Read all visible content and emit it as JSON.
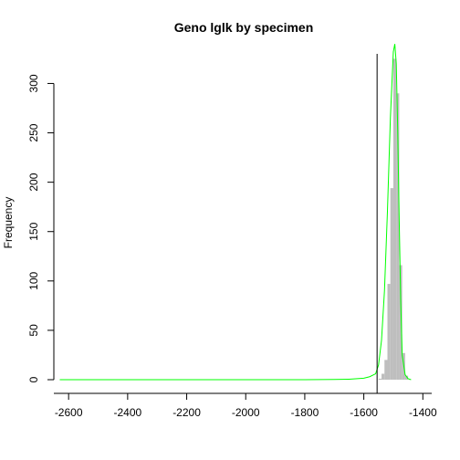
{
  "chart_data": {
    "type": "histogram",
    "title": "Geno lglk by specimen",
    "xlabel": "",
    "ylabel": "Frequency",
    "xlim": [
      -2650,
      -1370
    ],
    "ylim": [
      0,
      330
    ],
    "x_ticks": [
      -2600,
      -2400,
      -2200,
      -2000,
      -1800,
      -1600,
      -1400
    ],
    "y_ticks": [
      0,
      50,
      100,
      150,
      200,
      250,
      300
    ],
    "grid": false,
    "bins": [
      {
        "x0": -1560,
        "x1": -1550,
        "count": 0
      },
      {
        "x0": -1550,
        "x1": -1540,
        "count": 1
      },
      {
        "x0": -1540,
        "x1": -1530,
        "count": 6
      },
      {
        "x0": -1530,
        "x1": -1520,
        "count": 20
      },
      {
        "x0": -1520,
        "x1": -1510,
        "count": 97
      },
      {
        "x0": -1510,
        "x1": -1500,
        "count": 194
      },
      {
        "x0": -1500,
        "x1": -1490,
        "count": 325
      },
      {
        "x0": -1490,
        "x1": -1480,
        "count": 290
      },
      {
        "x0": -1480,
        "x1": -1470,
        "count": 116
      },
      {
        "x0": -1470,
        "x1": -1460,
        "count": 27
      },
      {
        "x0": -1460,
        "x1": -1450,
        "count": 4
      }
    ],
    "bar_color": "#bebebe",
    "vline": {
      "x": -1555,
      "color": "#000000"
    },
    "density_curve": {
      "color": "#00ff00",
      "x": [
        -2630,
        -2400,
        -2200,
        -2000,
        -1800,
        -1700,
        -1650,
        -1600,
        -1580,
        -1560,
        -1550,
        -1540,
        -1530,
        -1520,
        -1510,
        -1500,
        -1495,
        -1490,
        -1485,
        -1480,
        -1475,
        -1470,
        -1460,
        -1450,
        -1440
      ],
      "y": [
        0,
        0,
        0,
        0,
        0,
        0.2,
        0.5,
        1.5,
        3,
        6,
        15,
        40,
        90,
        170,
        265,
        332,
        340,
        320,
        250,
        160,
        80,
        25,
        5,
        1,
        0
      ]
    }
  }
}
